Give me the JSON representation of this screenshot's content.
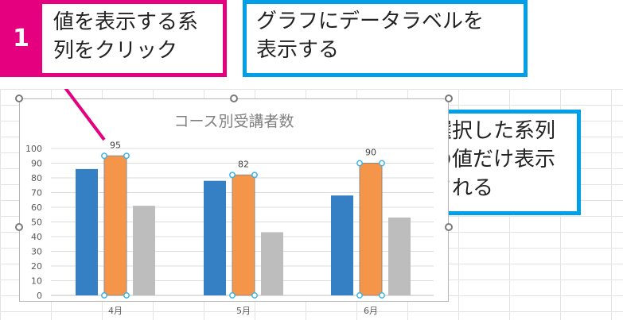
{
  "callouts": {
    "step_number": "1",
    "step_text": "値を表示する系\n列をクリック",
    "top_text": "グラフにデータラベルを\n表示する",
    "side_text": "選択した系列\nの値だけ表示\nされる"
  },
  "colors": {
    "step_accent": "#e4007f",
    "callout_border": "#00a0e9",
    "series_blue": "#3580c4",
    "series_orange": "#f5954a",
    "series_gray": "#bdbdbd",
    "selection_handle": "#3eb3e8"
  },
  "chart_data": {
    "type": "bar",
    "title": "コース別受講者数",
    "categories": [
      "4月",
      "5月",
      "6月"
    ],
    "series": [
      {
        "values": [
          86,
          78,
          68
        ],
        "color": "#3580c4"
      },
      {
        "values": [
          95,
          82,
          90
        ],
        "color": "#f5954a",
        "selected": true,
        "show_data_labels": true
      },
      {
        "values": [
          61,
          43,
          53
        ],
        "color": "#bdbdbd"
      }
    ],
    "ylim": [
      0,
      100
    ],
    "yticks": [
      "0",
      "10",
      "20",
      "30",
      "40",
      "50",
      "60",
      "70",
      "80",
      "90",
      "100"
    ],
    "data_labels": [
      "95",
      "82",
      "90"
    ],
    "grid": true
  }
}
